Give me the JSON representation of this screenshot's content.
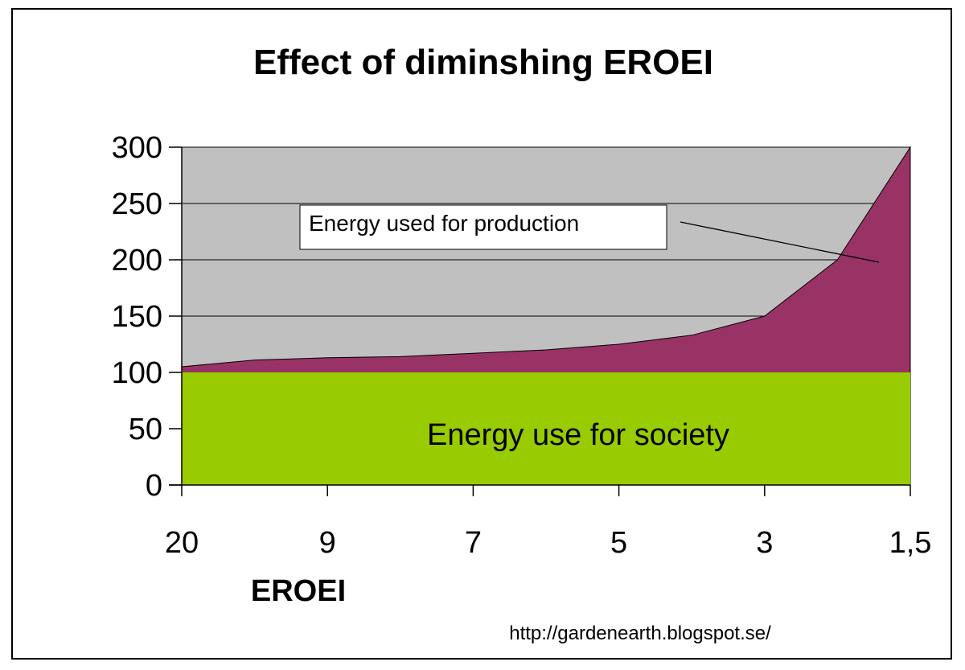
{
  "chart_data": {
    "type": "area",
    "title": "Effect of diminshing EROEI",
    "xlabel": "EROEI",
    "ylabel": "",
    "categories": [
      "20",
      "",
      "9",
      "",
      "7",
      "",
      "5",
      "",
      "3",
      "",
      "1,5"
    ],
    "x_tick_labels": [
      "20",
      "9",
      "7",
      "5",
      "3",
      "1,5"
    ],
    "ylim": [
      0,
      300
    ],
    "yticks": [
      0,
      50,
      100,
      150,
      200,
      250,
      300
    ],
    "grid": true,
    "series": [
      {
        "name": "Energy use for society",
        "color": "#99cc00",
        "values": [
          100,
          100,
          100,
          100,
          100,
          100,
          100,
          100,
          100,
          100,
          100
        ]
      },
      {
        "name": "Energy used for production",
        "color": "#993366",
        "values": [
          105,
          111,
          113,
          114,
          117,
          120,
          125,
          133,
          150,
          200,
          300
        ]
      }
    ],
    "annotations": {
      "production_label": "Energy used for production",
      "society_label": "Energy use for society"
    },
    "background_color": "#c0c0c0",
    "source": "http://gardenearth.blogspot.se/"
  }
}
